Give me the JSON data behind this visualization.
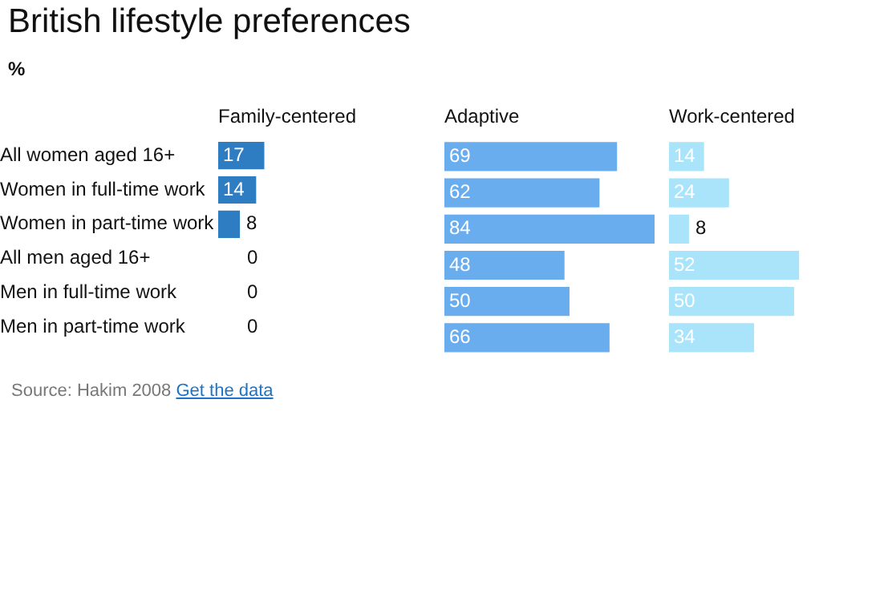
{
  "chart_data": [
    {
      "type": "other",
      "title": "British lifestyle preferences",
      "subtitle": "%",
      "annotations": [
        "Source: Hakim 2008",
        "Get the data"
      ]
    },
    {
      "type": "bar",
      "orientation": "horizontal",
      "title": "Family-centered",
      "categories": [
        "All women aged 16+",
        "Women in full-time work",
        "Women in part-time work",
        "All men aged 16+",
        "Men in full-time work",
        "Men in part-time work"
      ],
      "values": [
        17,
        14,
        8,
        0,
        0,
        0
      ],
      "color": "#2e7cc2",
      "data_labels": true,
      "tick_labels": "y"
    },
    {
      "type": "bar",
      "orientation": "horizontal",
      "title": "Adaptive",
      "categories": [
        null,
        null,
        null,
        null,
        null,
        null
      ],
      "values": [
        69,
        62,
        84,
        48,
        50,
        66
      ],
      "color": "#6aadee",
      "data_labels": true,
      "tick_labels": false
    },
    {
      "type": "bar",
      "orientation": "horizontal",
      "title": "Work-centered",
      "categories": [
        null,
        null,
        null,
        null,
        null,
        null
      ],
      "values": [
        14,
        24,
        8,
        52,
        50,
        34
      ],
      "color": "#a9e4fb",
      "data_labels": true,
      "tick_labels": false
    }
  ]
}
